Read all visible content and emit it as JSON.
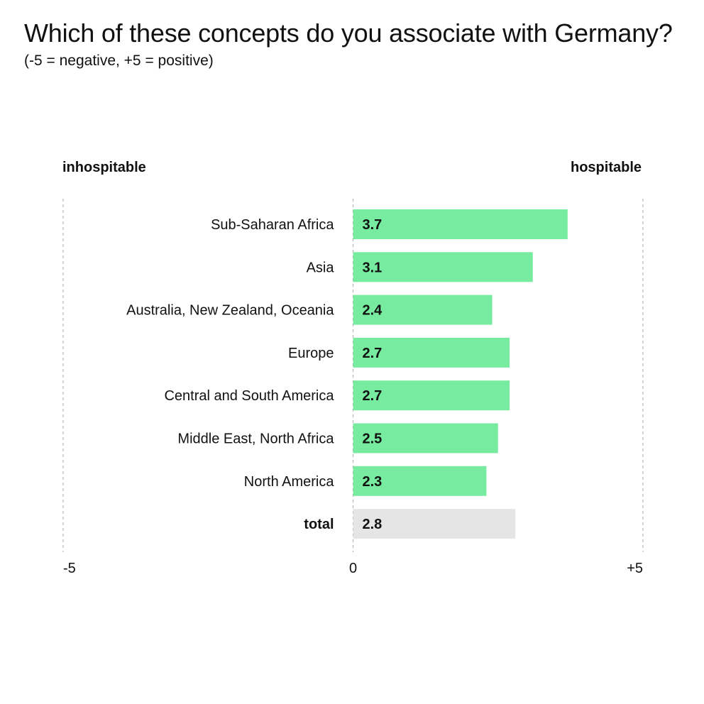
{
  "chart_data": {
    "type": "bar",
    "orientation": "horizontal",
    "title": "Which of these concepts do you associate with Germany?",
    "subtitle": "(-5 = negative, +5 = positive)",
    "left_pole_label": "inhospitable",
    "right_pole_label": "hospitable",
    "categories": [
      "Sub-Saharan Africa",
      "Asia",
      "Australia, New Zealand, Oceania",
      "Europe",
      "Central and South America",
      "Middle East, North Africa",
      "North America",
      "total"
    ],
    "values": [
      3.7,
      3.1,
      2.4,
      2.7,
      2.7,
      2.5,
      2.3,
      2.8
    ],
    "value_labels": [
      "3.7",
      "3.1",
      "2.4",
      "2.7",
      "2.7",
      "2.5",
      "2.3",
      "2.8"
    ],
    "highlight_category": "total",
    "xlim": [
      -5,
      5
    ],
    "x_ticks": [
      {
        "value": -5,
        "label": "-5"
      },
      {
        "value": 0,
        "label": "0"
      },
      {
        "value": 5,
        "label": "+5"
      }
    ],
    "grid": "dashed lines at -5, 0, +5",
    "legend": "none",
    "colors": {
      "bar": "#77eb9f",
      "total_bar": "#e5e5e5",
      "gridline": "#aaaaaa"
    }
  }
}
